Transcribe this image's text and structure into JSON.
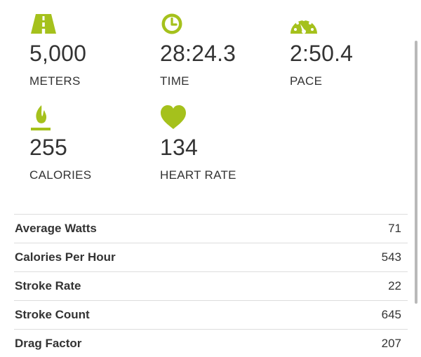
{
  "colors": {
    "accent": "#a5c11c",
    "text": "#333333",
    "divider": "#dddddd",
    "scrollbar": "#b9b9b9"
  },
  "stats": {
    "meters": {
      "icon": "road-icon",
      "value": "5,000",
      "label": "METERS"
    },
    "time": {
      "icon": "clock-icon",
      "value": "28:24.3",
      "label": "TIME"
    },
    "pace": {
      "icon": "speedometer-icon",
      "value": "2:50.4",
      "label": "PACE"
    },
    "calories": {
      "icon": "flame-icon",
      "value": "255",
      "label": "CALORIES"
    },
    "heart_rate": {
      "icon": "heart-icon",
      "value": "134",
      "label": "HEART RATE"
    }
  },
  "details": [
    {
      "label": "Average Watts",
      "value": "71"
    },
    {
      "label": "Calories Per Hour",
      "value": "543"
    },
    {
      "label": "Stroke Rate",
      "value": "22"
    },
    {
      "label": "Stroke Count",
      "value": "645"
    },
    {
      "label": "Drag Factor",
      "value": "207"
    }
  ]
}
